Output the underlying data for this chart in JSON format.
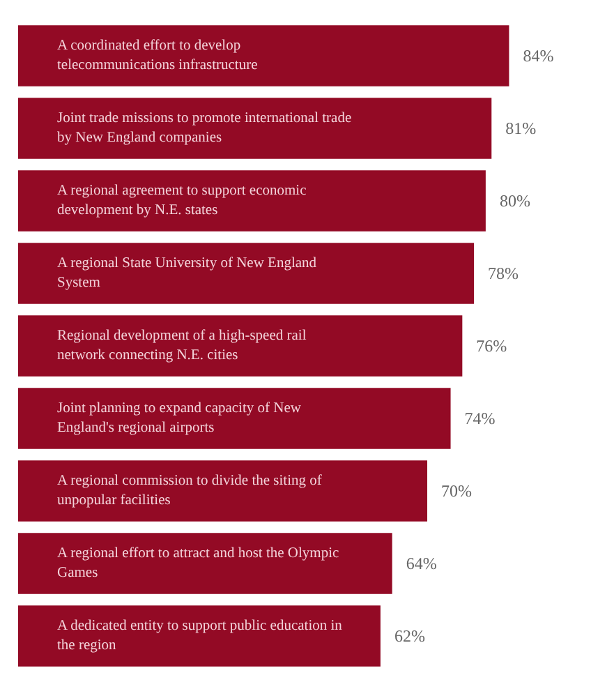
{
  "chart_data": {
    "type": "bar",
    "orientation": "horizontal",
    "categories": [
      "A coordinated effort to develop telecommunications infrastructure",
      "Joint trade missions to promote international trade by New England companies",
      "A regional agreement to support economic development by N.E. states",
      "A regional State University of New England System",
      "Regional development of a high-speed rail network connecting N.E. cities",
      "Joint planning to expand capacity of New England's regional airports",
      "A regional commission to divide the siting of unpopular facilities",
      "A regional effort to attract and host the Olympic Games",
      "A dedicated entity to support public education in the region"
    ],
    "values": [
      84,
      81,
      80,
      78,
      76,
      74,
      70,
      64,
      62
    ],
    "value_labels": [
      "84%",
      "81%",
      "80%",
      "78%",
      "76%",
      "74%",
      "70%",
      "64%",
      "62%"
    ],
    "color": "#930a25"
  }
}
